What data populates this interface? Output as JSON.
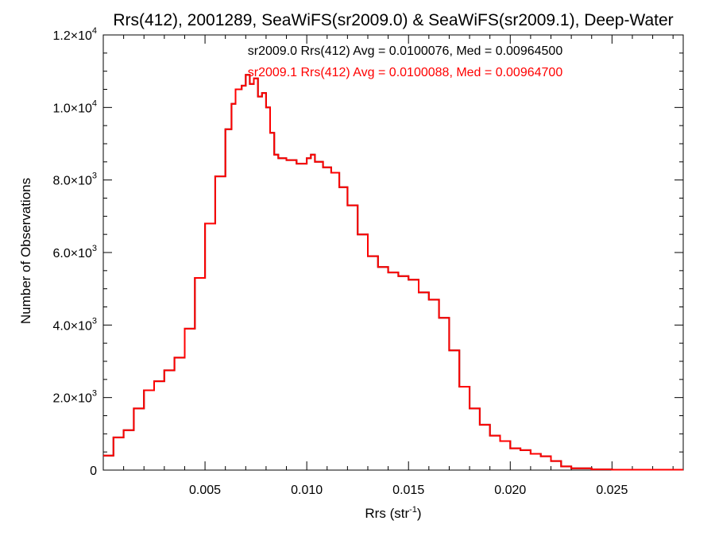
{
  "chart_data": {
    "type": "line",
    "step": true,
    "title": "Rrs(412), 2001289, SeaWiFS(sr2009.0) & SeaWiFS(sr2009.1), Deep-Water",
    "xlabel": "Rrs (str",
    "xlabel_sup": "-1",
    "xlabel_end": ")",
    "ylabel": "Number of Observations",
    "xlim": [
      0.0,
      0.0285
    ],
    "ylim": [
      0,
      12000
    ],
    "x_ticks": [
      {
        "value": 0.005,
        "label": "0.005"
      },
      {
        "value": 0.01,
        "label": "0.010"
      },
      {
        "value": 0.015,
        "label": "0.015"
      },
      {
        "value": 0.02,
        "label": "0.020"
      },
      {
        "value": 0.025,
        "label": "0.025"
      }
    ],
    "y_ticks": [
      {
        "value": 0,
        "mant": "0",
        "exp": ""
      },
      {
        "value": 2000,
        "mant": "2.0×10",
        "exp": "3"
      },
      {
        "value": 4000,
        "mant": "4.0×10",
        "exp": "3"
      },
      {
        "value": 6000,
        "mant": "6.0×10",
        "exp": "3"
      },
      {
        "value": 8000,
        "mant": "8.0×10",
        "exp": "3"
      },
      {
        "value": 10000,
        "mant": "1.0×10",
        "exp": "4"
      },
      {
        "value": 12000,
        "mant": "1.2×10",
        "exp": "4"
      }
    ],
    "grid": false,
    "annotations": [
      "sr2009.0 Rrs(412) Avg = 0.0100076, Med = 0.00964500",
      "sr2009.1 Rrs(412) Avg = 0.0100088, Med = 0.00964700"
    ],
    "series": [
      {
        "color": "#000000",
        "x": [
          0.0,
          0.0005,
          0.001,
          0.0015,
          0.002,
          0.0025,
          0.003,
          0.0035,
          0.004,
          0.0045,
          0.005,
          0.0055,
          0.006,
          0.0063,
          0.0065,
          0.0068,
          0.007,
          0.0072,
          0.0074,
          0.0076,
          0.0078,
          0.008,
          0.0082,
          0.0084,
          0.0086,
          0.009,
          0.0095,
          0.01,
          0.0102,
          0.0104,
          0.0108,
          0.0112,
          0.0116,
          0.012,
          0.0125,
          0.013,
          0.0135,
          0.014,
          0.0145,
          0.015,
          0.0155,
          0.016,
          0.0165,
          0.017,
          0.0175,
          0.018,
          0.0185,
          0.019,
          0.0195,
          0.02,
          0.0205,
          0.021,
          0.0215,
          0.022,
          0.0225,
          0.023,
          0.024,
          0.025,
          0.0285
        ],
        "y": [
          400,
          900,
          1100,
          1700,
          2200,
          2450,
          2750,
          3100,
          3900,
          5300,
          6800,
          8100,
          9400,
          10100,
          10500,
          10600,
          10900,
          10650,
          10800,
          10300,
          10400,
          10000,
          9300,
          8700,
          8600,
          8550,
          8450,
          8600,
          8700,
          8500,
          8350,
          8200,
          7800,
          7300,
          6500,
          5900,
          5600,
          5450,
          5350,
          5250,
          4900,
          4700,
          4200,
          3300,
          2300,
          1700,
          1250,
          950,
          800,
          600,
          550,
          450,
          380,
          250,
          100,
          50,
          20,
          10,
          10
        ]
      },
      {
        "color": "#ff0000",
        "x": [
          0.0,
          0.0005,
          0.001,
          0.0015,
          0.002,
          0.0025,
          0.003,
          0.0035,
          0.004,
          0.0045,
          0.005,
          0.0055,
          0.006,
          0.0063,
          0.0065,
          0.0068,
          0.007,
          0.0072,
          0.0074,
          0.0076,
          0.0078,
          0.008,
          0.0082,
          0.0084,
          0.0086,
          0.009,
          0.0095,
          0.01,
          0.0102,
          0.0104,
          0.0108,
          0.0112,
          0.0116,
          0.012,
          0.0125,
          0.013,
          0.0135,
          0.014,
          0.0145,
          0.015,
          0.0155,
          0.016,
          0.0165,
          0.017,
          0.0175,
          0.018,
          0.0185,
          0.019,
          0.0195,
          0.02,
          0.0205,
          0.021,
          0.0215,
          0.022,
          0.0225,
          0.023,
          0.024,
          0.025,
          0.0285
        ],
        "y": [
          400,
          900,
          1100,
          1700,
          2200,
          2450,
          2750,
          3100,
          3900,
          5300,
          6800,
          8100,
          9400,
          10100,
          10500,
          10600,
          10900,
          10650,
          10800,
          10300,
          10400,
          10000,
          9300,
          8700,
          8600,
          8550,
          8450,
          8600,
          8700,
          8500,
          8350,
          8200,
          7800,
          7300,
          6500,
          5900,
          5600,
          5450,
          5350,
          5250,
          4900,
          4700,
          4200,
          3300,
          2300,
          1700,
          1250,
          950,
          800,
          600,
          550,
          450,
          380,
          250,
          100,
          50,
          20,
          10,
          10
        ]
      }
    ]
  }
}
